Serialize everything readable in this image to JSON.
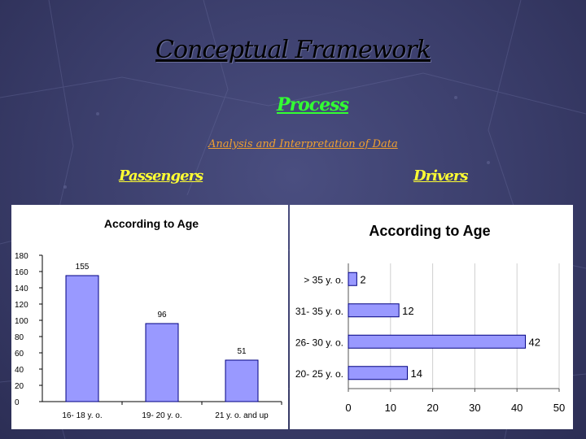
{
  "slide": {
    "title": "Conceptual Framework",
    "process": "Process",
    "analysis": "Analysis and Interpretation of Data",
    "passengers_label": "Passengers",
    "drivers_label": "Drivers"
  },
  "colors": {
    "bar_fill": "#9999ff",
    "bar_stroke": "#000080"
  },
  "chart_data": [
    {
      "type": "bar",
      "title": "According to Age",
      "categories": [
        "16- 18 y. o.",
        "19- 20 y. o.",
        "21 y. o. and up"
      ],
      "values": [
        155,
        96,
        51
      ],
      "ylim": [
        0,
        180
      ],
      "yticks": [
        0,
        20,
        40,
        60,
        80,
        100,
        120,
        140,
        160,
        180
      ],
      "xlabel": "",
      "ylabel": "",
      "grid": false,
      "data_labels": true
    },
    {
      "type": "bar",
      "orientation": "horizontal",
      "title": "According to Age",
      "categories": [
        "> 35 y. o.",
        "31- 35 y. o.",
        "26- 30 y. o.",
        "20- 25 y. o."
      ],
      "values": [
        2,
        12,
        42,
        14
      ],
      "xlim": [
        0,
        50
      ],
      "xticks": [
        0,
        10,
        20,
        30,
        40,
        50
      ],
      "xlabel": "",
      "ylabel": "",
      "grid": true,
      "data_labels": true
    }
  ]
}
